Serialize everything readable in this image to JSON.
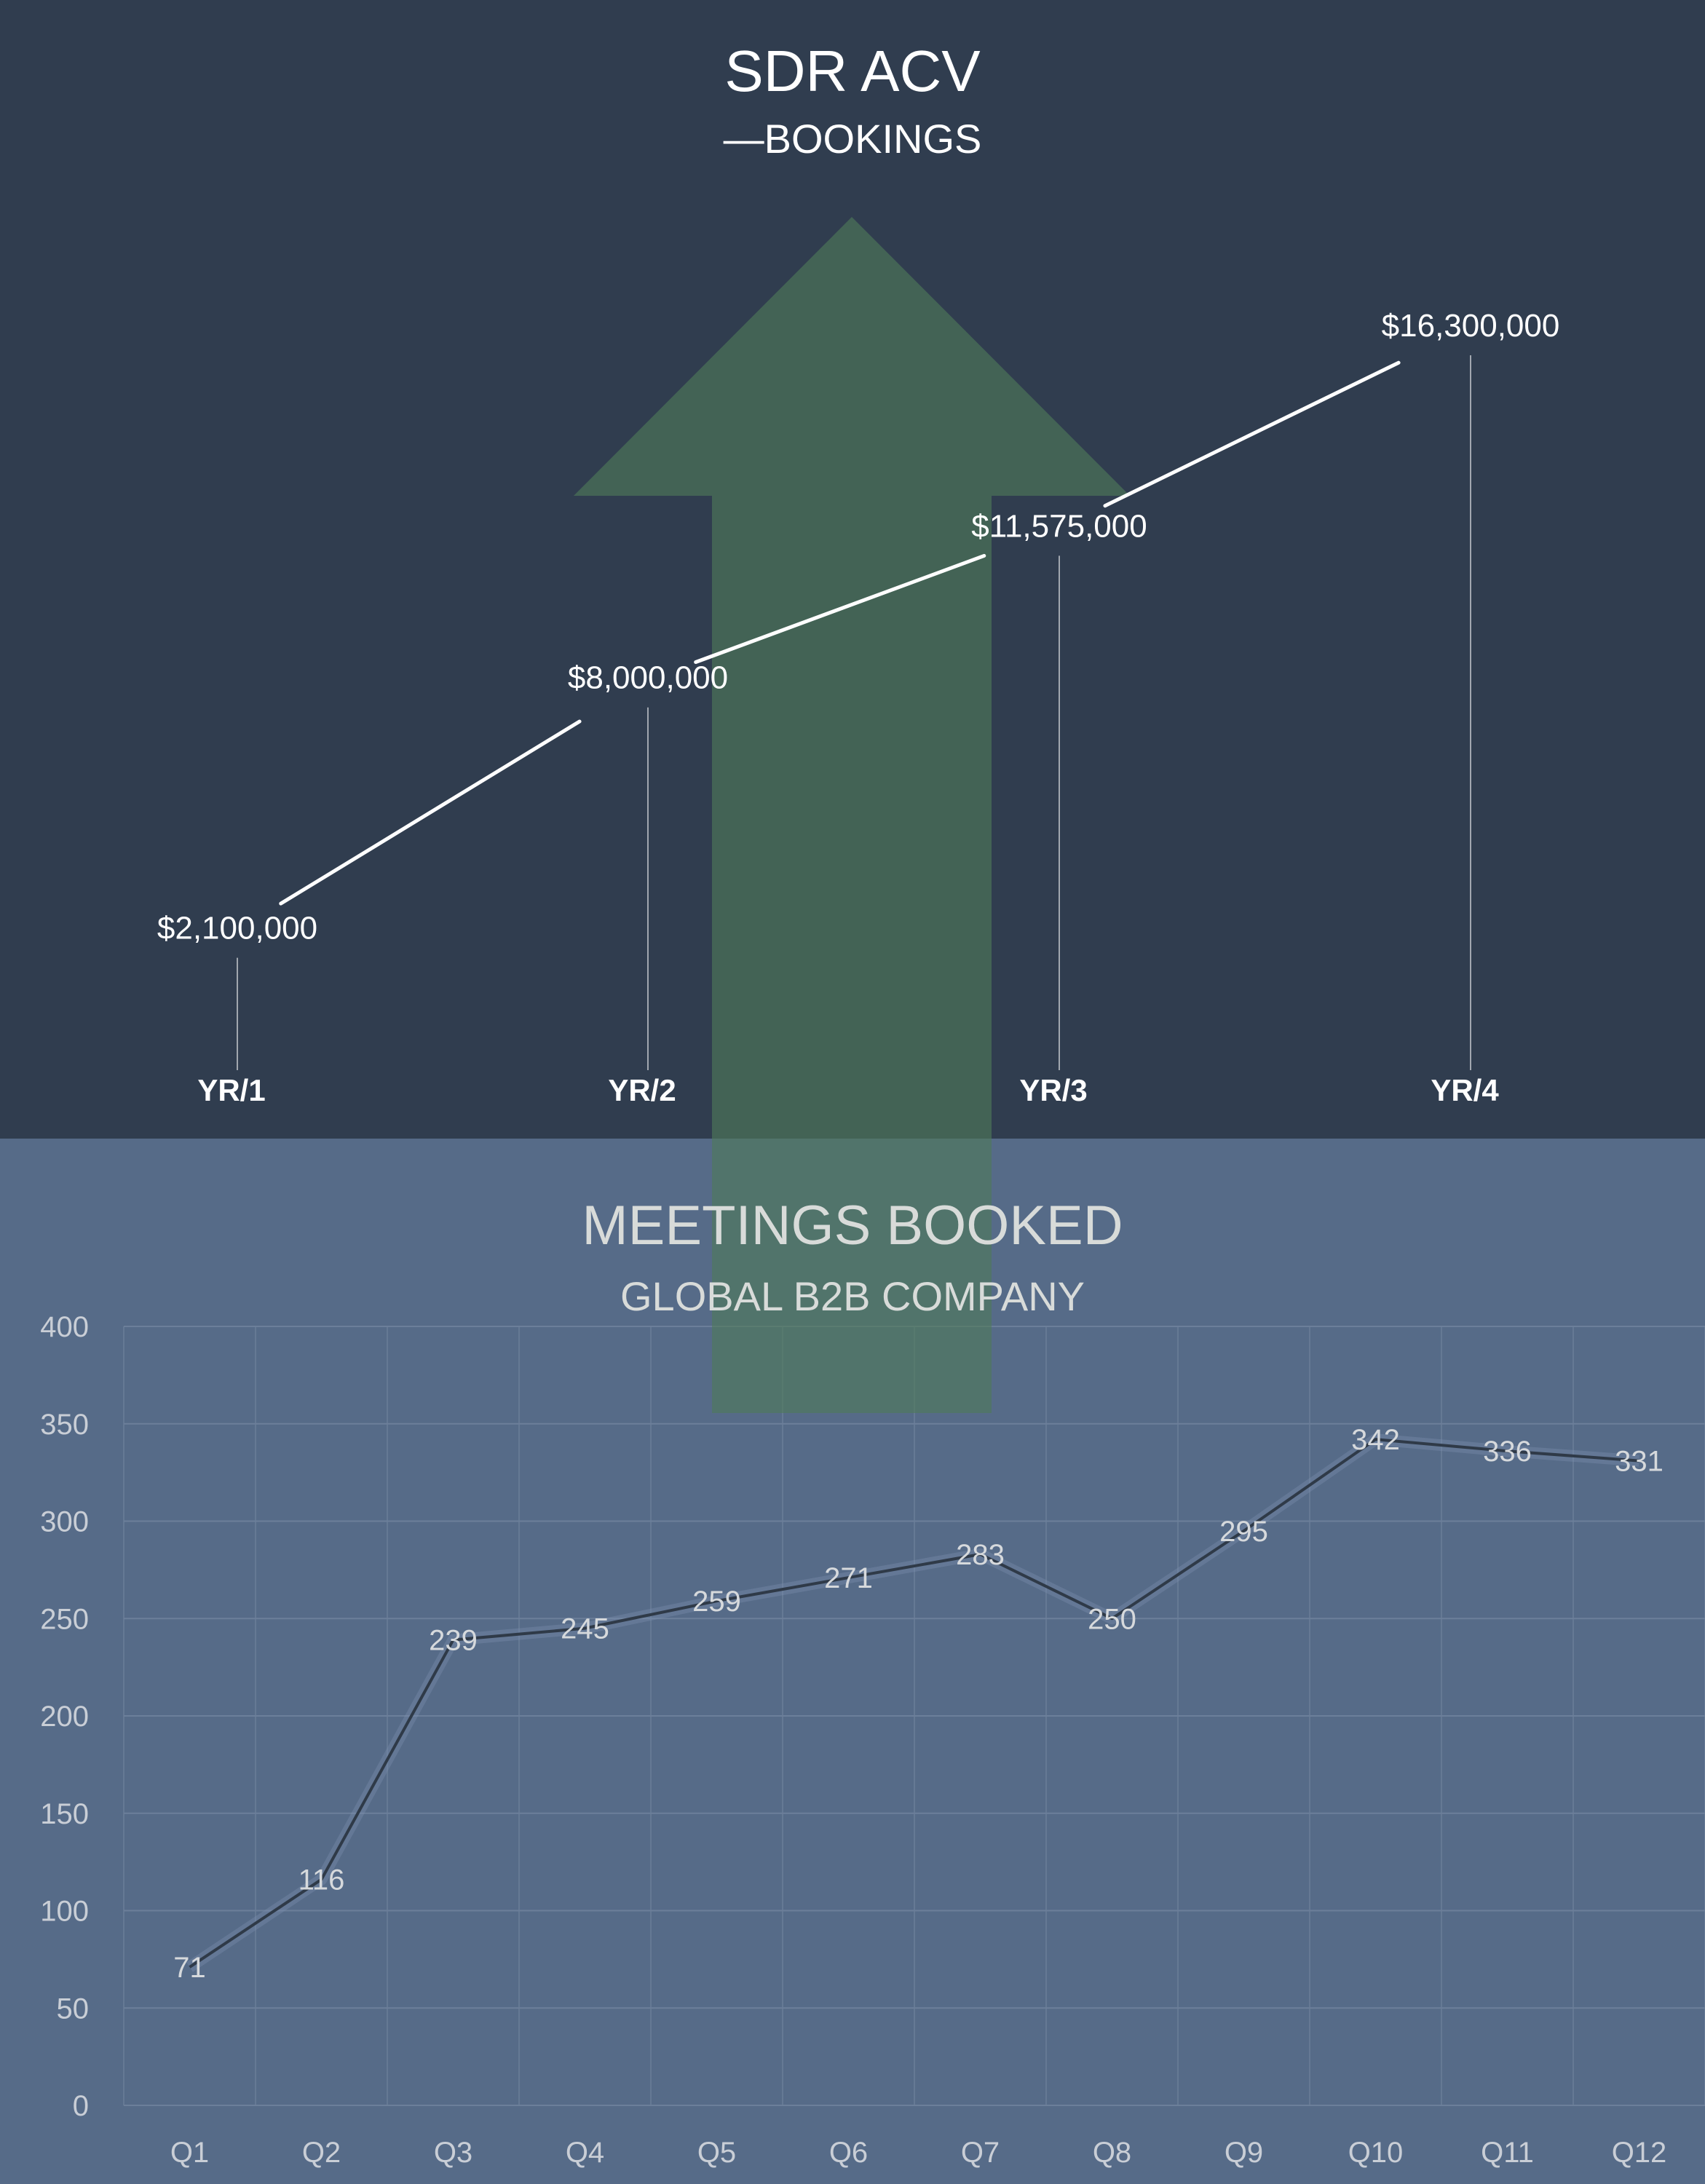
{
  "colors": {
    "top_background": "#303d4f",
    "bottom_background": "#566b88",
    "arrow": "#4f7a59",
    "line_top": "#ffffff",
    "line_bottom": "#2f3a48",
    "gridline": "#6c7f9a"
  },
  "decorations": {
    "arrow_icon": "up-arrow-icon"
  },
  "chart_data": [
    {
      "type": "line",
      "title": "SDR ACV",
      "subtitle": "—BOOKINGS",
      "categories": [
        "YR/1",
        "YR/2",
        "YR/3",
        "YR/4"
      ],
      "series": [
        {
          "values": [
            2100000,
            8000000,
            11575000,
            16300000
          ]
        }
      ],
      "data_labels": [
        "$2,100,000",
        "$8,000,000",
        "$11,575,000",
        "$16,300,000"
      ],
      "grid": false,
      "legend": "none"
    },
    {
      "type": "line",
      "title": "MEETINGS BOOKED",
      "subtitle": "GLOBAL B2B COMPANY",
      "categories": [
        "Q1",
        "Q2",
        "Q3",
        "Q4",
        "Q5",
        "Q6",
        "Q7",
        "Q8",
        "Q9",
        "Q10",
        "Q11",
        "Q12"
      ],
      "series": [
        {
          "values": [
            71,
            116,
            239,
            245,
            259,
            271,
            283,
            250,
            295,
            342,
            336,
            331
          ]
        }
      ],
      "ylim": [
        0,
        400
      ],
      "yticks": [
        "0",
        "50",
        "100",
        "150",
        "200",
        "250",
        "300",
        "350",
        "400"
      ],
      "grid": true,
      "legend": "none"
    }
  ]
}
